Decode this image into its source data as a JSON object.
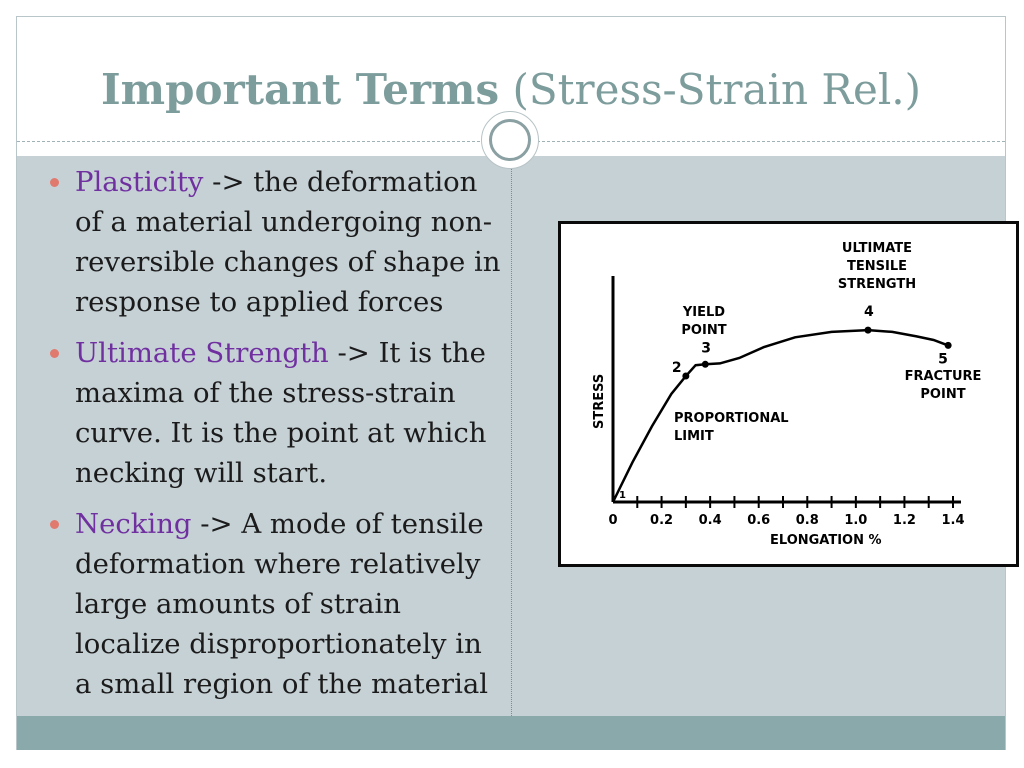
{
  "slide": {
    "title_bold": "Important Terms",
    "title_rest": " (Stress-Strain Rel.)"
  },
  "bullets": [
    {
      "term": "Plasticity",
      "lines": [
        " -> the deformation",
        "of a material undergoing non-",
        "reversible changes of shape in",
        "response to applied forces"
      ]
    },
    {
      "term": "Ultimate Strength",
      "lines": [
        " -> It is the",
        "maxima of the stress-strain",
        "curve. It is the point at which",
        "necking will start."
      ]
    },
    {
      "term": "Necking",
      "lines": [
        " -> A mode of tensile",
        "deformation where relatively",
        "large amounts of strain",
        "localize disproportionately in",
        "a small region of the material"
      ]
    }
  ],
  "colors": {
    "title": "#7d9c9c",
    "term": "#7030a0",
    "bullet": "#e07a6f",
    "content_bg": "#c6d1d6",
    "footer": "#8aa9aa"
  },
  "chart_data": {
    "type": "line",
    "xlabel": "ELONGATION  %",
    "ylabel": "STRESS",
    "x_ticks": [
      "0",
      "0.2",
      "0.4",
      "0.6",
      "0.8",
      "1.0",
      "1.2",
      "1.4"
    ],
    "xlim": [
      0,
      1.4
    ],
    "curve": {
      "x": [
        0,
        0.08,
        0.16,
        0.24,
        0.3,
        0.34,
        0.38,
        0.44,
        0.52,
        0.62,
        0.75,
        0.9,
        1.05,
        1.15,
        1.25,
        1.32,
        1.38
      ],
      "y": [
        0,
        0.22,
        0.42,
        0.6,
        0.7,
        0.76,
        0.765,
        0.77,
        0.8,
        0.86,
        0.915,
        0.945,
        0.955,
        0.945,
        0.92,
        0.9,
        0.87
      ]
    },
    "points": [
      {
        "id": "1",
        "x": 0.0,
        "y": 0.0
      },
      {
        "id": "2",
        "x": 0.3,
        "y": 0.7
      },
      {
        "id": "3",
        "x": 0.38,
        "y": 0.765
      },
      {
        "id": "4",
        "x": 1.05,
        "y": 0.955
      },
      {
        "id": "5",
        "x": 1.38,
        "y": 0.87
      }
    ],
    "annotations": [
      {
        "key": "ultimate",
        "lines": [
          "ULTIMATE",
          "TENSILE",
          "STRENGTH"
        ]
      },
      {
        "key": "yield",
        "lines": [
          "YIELD",
          "POINT"
        ]
      },
      {
        "key": "proportional",
        "lines": [
          "PROPORTIONAL",
          "LIMIT"
        ]
      },
      {
        "key": "fracture",
        "lines": [
          "FRACTURE",
          "POINT"
        ]
      }
    ]
  }
}
